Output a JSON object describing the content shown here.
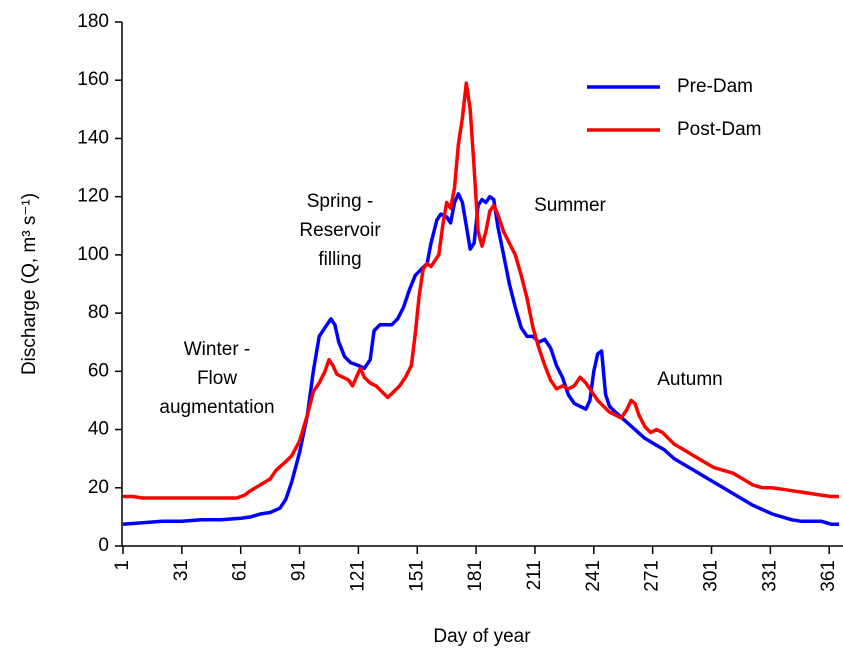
{
  "chart_data": {
    "type": "line",
    "xlabel": "Day of year",
    "ylabel": "Discharge (Q, m³ s⁻¹)",
    "xlim": [
      1,
      366
    ],
    "xticks": [
      1,
      31,
      61,
      91,
      121,
      151,
      181,
      211,
      241,
      271,
      301,
      331,
      361
    ],
    "ylim": [
      0,
      180
    ],
    "yticks": [
      0,
      20,
      40,
      60,
      80,
      100,
      120,
      140,
      160,
      180
    ],
    "legend": "upper right",
    "annotations": [
      [
        "Winter -",
        "Flow",
        "augmentation"
      ],
      [
        "Spring -",
        "Reservoir",
        "filling"
      ],
      [
        "Summer"
      ],
      [
        "Autumn"
      ]
    ],
    "series": [
      {
        "name": "Pre-Dam",
        "color": "#0000ff",
        "x": [
          1,
          11,
          21,
          31,
          41,
          51,
          61,
          66,
          71,
          76,
          81,
          84,
          87,
          91,
          95,
          98,
          101,
          104,
          107,
          109,
          111,
          114,
          117,
          121,
          124,
          127,
          129,
          132,
          135,
          138,
          141,
          144,
          147,
          150,
          153,
          156,
          158,
          161,
          163,
          166,
          168,
          170,
          172,
          174,
          176,
          178,
          180,
          182,
          184,
          186,
          188,
          190,
          192,
          195,
          198,
          201,
          204,
          207,
          210,
          213,
          216,
          219,
          222,
          225,
          228,
          231,
          234,
          237,
          239,
          241,
          243,
          245,
          247,
          249,
          252,
          257,
          262,
          267,
          272,
          277,
          282,
          287,
          292,
          297,
          302,
          307,
          312,
          317,
          322,
          327,
          332,
          337,
          342,
          347,
          352,
          357,
          362,
          366
        ],
        "values": [
          7.5,
          8,
          8.5,
          8.5,
          9,
          9,
          9.5,
          10,
          11,
          11.5,
          13,
          16,
          22,
          32,
          45,
          60,
          72,
          75,
          78,
          76,
          70,
          65,
          63,
          62,
          61,
          64,
          74,
          76,
          76,
          76,
          78,
          82,
          88,
          93,
          95,
          97,
          104,
          112,
          114,
          113,
          111,
          118,
          121,
          118,
          110,
          102,
          104,
          117,
          119,
          118,
          120,
          119,
          110,
          100,
          90,
          82,
          75,
          72,
          72,
          70,
          71,
          68,
          62,
          58,
          52,
          49,
          48,
          47,
          50,
          60,
          66,
          67,
          52,
          48,
          46,
          43,
          40,
          37,
          35,
          33,
          30,
          28,
          26,
          24,
          22,
          20,
          18,
          16,
          14,
          12.5,
          11,
          10,
          9,
          8.5,
          8.5,
          8.5,
          7.5,
          7.5
        ]
      },
      {
        "name": "Post-Dam",
        "color": "#ff0000",
        "x": [
          1,
          6,
          11,
          21,
          31,
          41,
          51,
          59,
          63,
          66,
          71,
          76,
          79,
          84,
          87,
          91,
          95,
          98,
          101,
          104,
          106,
          108,
          110,
          113,
          116,
          118,
          120,
          122,
          124,
          127,
          130,
          133,
          136,
          139,
          142,
          145,
          148,
          150,
          152,
          154,
          156,
          158,
          160,
          162,
          164,
          166,
          168,
          170,
          172,
          174,
          176,
          178,
          180,
          182,
          184,
          186,
          188,
          190,
          192,
          195,
          198,
          201,
          204,
          207,
          210,
          213,
          216,
          219,
          222,
          225,
          228,
          231,
          234,
          237,
          240,
          243,
          246,
          249,
          252,
          255,
          258,
          260,
          262,
          264,
          267,
          270,
          273,
          276,
          279,
          282,
          287,
          292,
          297,
          302,
          307,
          312,
          317,
          322,
          327,
          332,
          337,
          342,
          347,
          352,
          357,
          362,
          366
        ],
        "values": [
          17,
          17,
          16.5,
          16.5,
          16.5,
          16.5,
          16.5,
          16.5,
          17.5,
          19,
          21,
          23,
          26,
          29,
          31,
          36,
          45,
          53,
          56,
          60,
          64,
          62,
          59,
          58,
          57,
          55,
          58,
          61,
          58,
          56,
          55,
          53,
          51,
          53,
          55,
          58,
          62,
          73,
          86,
          95,
          97,
          96,
          98,
          100,
          110,
          118,
          116,
          123,
          138,
          147,
          159,
          150,
          130,
          108,
          103,
          108,
          115,
          117,
          114,
          108,
          104,
          100,
          93,
          85,
          75,
          68,
          62,
          57,
          54,
          55,
          54,
          55,
          58,
          56,
          53,
          50,
          48,
          46,
          45,
          44,
          47,
          50,
          49,
          45,
          41,
          39,
          40,
          39,
          37,
          35,
          33,
          31,
          29,
          27,
          26,
          25,
          23,
          21,
          20,
          20,
          19.5,
          19,
          18.5,
          18,
          17.5,
          17,
          17
        ]
      }
    ]
  }
}
